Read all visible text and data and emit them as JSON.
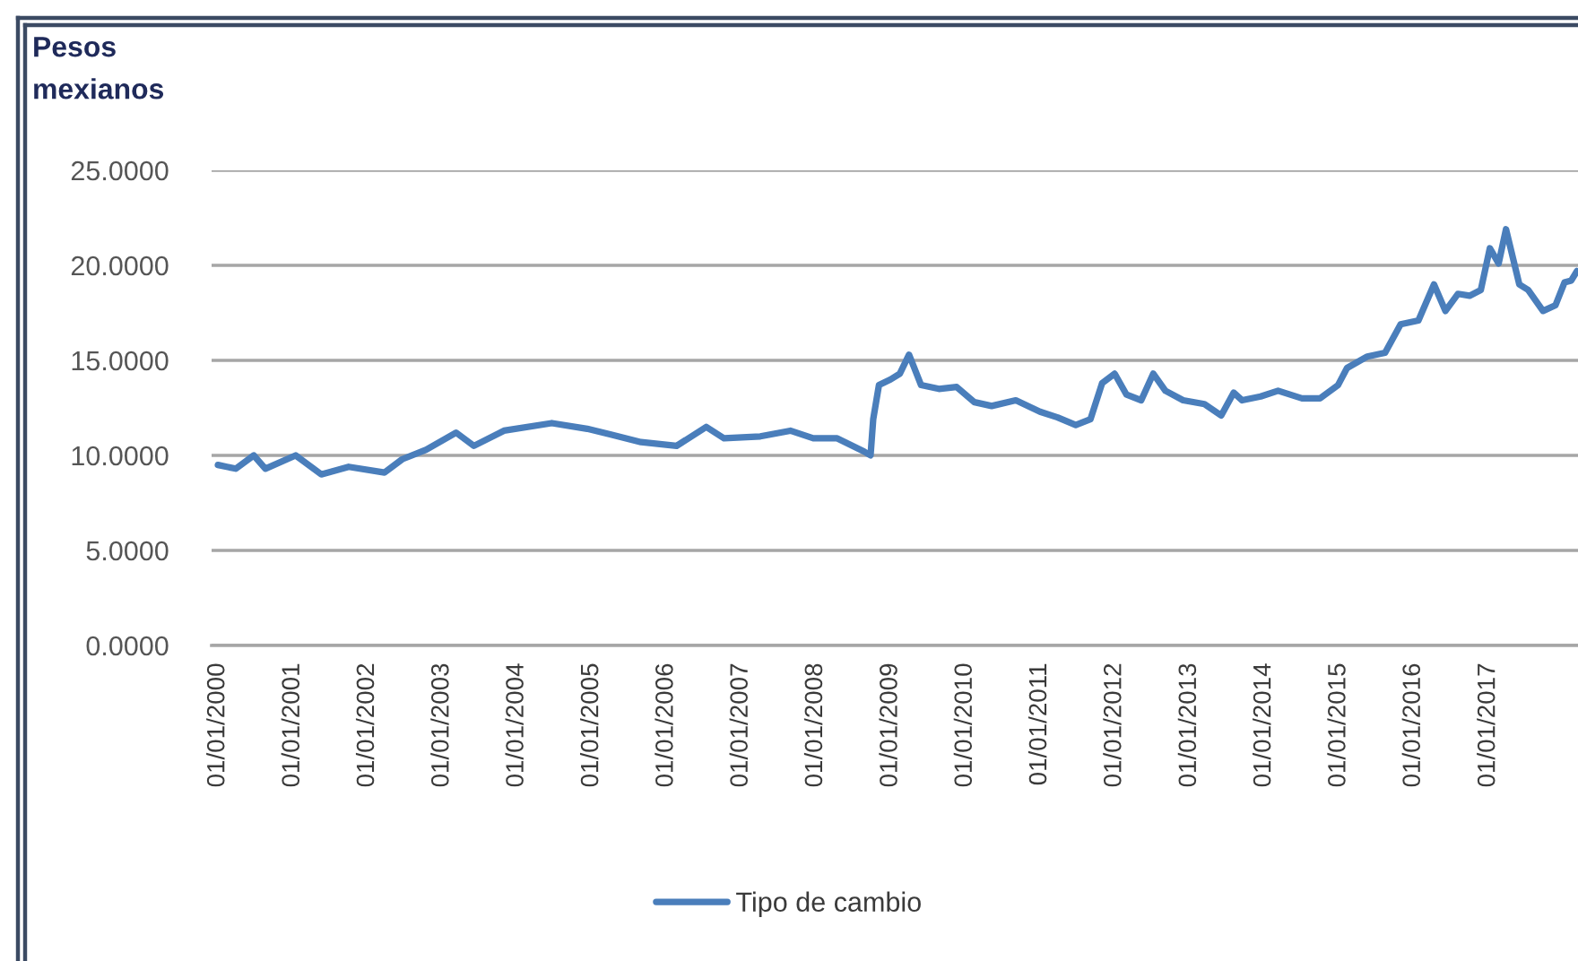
{
  "chart_data": {
    "type": "line",
    "ylabel": "Pesos\nmexianos",
    "x": [
      "2000-01-01",
      "2000-03-28",
      "2000-06-24",
      "2000-08-20",
      "2001-01-15",
      "2001-05-20",
      "2001-10-01",
      "2002-03-25",
      "2002-06-20",
      "2002-10-15",
      "2003-03-10",
      "2003-06-05",
      "2003-10-30",
      "2004-06-20",
      "2004-12-10",
      "2005-04-05",
      "2005-08-30",
      "2006-02-20",
      "2006-07-15",
      "2006-10-10",
      "2007-04-05",
      "2007-08-30",
      "2007-12-20",
      "2008-04-15",
      "2008-08-25",
      "2008-09-25",
      "2008-10-08",
      "2008-11-05",
      "2009-01-01",
      "2009-02-15",
      "2009-04-01",
      "2009-05-30",
      "2009-08-25",
      "2009-11-20",
      "2010-02-15",
      "2010-05-10",
      "2010-09-05",
      "2011-01-01",
      "2011-03-28",
      "2011-06-25",
      "2011-09-05",
      "2011-11-01",
      "2012-01-01",
      "2012-02-28",
      "2012-05-10",
      "2012-07-08",
      "2012-09-05",
      "2012-12-01",
      "2013-03-15",
      "2013-06-05",
      "2013-08-05",
      "2013-09-15",
      "2013-12-15",
      "2014-03-10",
      "2014-07-05",
      "2014-10-01",
      "2014-12-28",
      "2015-02-10",
      "2015-05-20",
      "2015-08-15",
      "2015-10-30",
      "2016-01-25",
      "2016-04-10",
      "2016-06-05",
      "2016-08-05",
      "2016-10-01",
      "2016-11-25",
      "2017-01-08",
      "2017-02-20",
      "2017-03-28",
      "2017-06-01",
      "2017-07-15",
      "2017-09-25",
      "2017-11-25",
      "2018-01-08",
      "2018-02-10",
      "2018-03-10"
    ],
    "series": [
      {
        "name": "Tipo de cambio",
        "color": "#4a7ebb",
        "values": [
          9.5,
          9.3,
          10.0,
          9.3,
          10.0,
          9.0,
          9.4,
          9.1,
          9.8,
          10.3,
          11.2,
          10.5,
          11.3,
          11.7,
          11.4,
          11.1,
          10.7,
          10.5,
          11.5,
          10.9,
          11.0,
          11.3,
          10.9,
          10.9,
          10.2,
          10.0,
          11.9,
          13.7,
          14.0,
          14.3,
          15.3,
          13.7,
          13.5,
          13.6,
          12.8,
          12.6,
          12.9,
          12.3,
          12.0,
          11.6,
          11.9,
          13.8,
          14.3,
          13.2,
          12.9,
          14.3,
          13.4,
          12.9,
          12.7,
          12.1,
          13.3,
          12.9,
          13.1,
          13.4,
          13.0,
          13.0,
          13.7,
          14.6,
          15.2,
          15.4,
          16.9,
          17.1,
          19.0,
          17.6,
          18.5,
          18.4,
          18.7,
          20.9,
          20.1,
          21.9,
          19.0,
          18.7,
          17.6,
          17.9,
          19.1,
          19.2,
          19.7
        ]
      }
    ],
    "xlim": [
      "1999-12-01",
      "2018-03-15"
    ],
    "xticks": [
      {
        "value": "2000-01-01",
        "label": "01/01/2000"
      },
      {
        "value": "2001-01-01",
        "label": "01/01/2001"
      },
      {
        "value": "2002-01-01",
        "label": "01/01/2002"
      },
      {
        "value": "2003-01-01",
        "label": "01/01/2003"
      },
      {
        "value": "2004-01-01",
        "label": "01/01/2004"
      },
      {
        "value": "2005-01-01",
        "label": "01/01/2005"
      },
      {
        "value": "2006-01-01",
        "label": "01/01/2006"
      },
      {
        "value": "2007-01-01",
        "label": "01/01/2007"
      },
      {
        "value": "2008-01-01",
        "label": "01/01/2008"
      },
      {
        "value": "2009-01-01",
        "label": "01/01/2009"
      },
      {
        "value": "2010-01-01",
        "label": "01/01/2010"
      },
      {
        "value": "2011-01-01",
        "label": "01/01/2011"
      },
      {
        "value": "2012-01-01",
        "label": "01/01/2012"
      },
      {
        "value": "2013-01-01",
        "label": "01/01/2013"
      },
      {
        "value": "2014-01-01",
        "label": "01/01/2014"
      },
      {
        "value": "2015-01-01",
        "label": "01/01/2015"
      },
      {
        "value": "2016-01-01",
        "label": "01/01/2016"
      },
      {
        "value": "2017-01-01",
        "label": "01/01/2017"
      }
    ],
    "ylim": [
      0,
      25
    ],
    "yticks": [
      {
        "value": 0,
        "label": "0.0000"
      },
      {
        "value": 5,
        "label": "5.0000"
      },
      {
        "value": 10,
        "label": "10.0000"
      },
      {
        "value": 15,
        "label": "15.0000"
      },
      {
        "value": 20,
        "label": "20.0000"
      },
      {
        "value": 25,
        "label": "25.0000"
      }
    ],
    "grid": "y",
    "legend": "bottom"
  }
}
